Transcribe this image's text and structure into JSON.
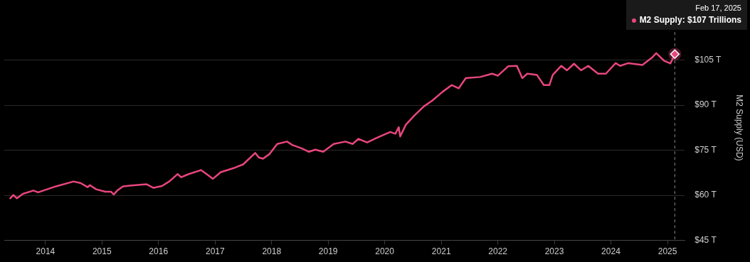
{
  "chart_data": {
    "type": "line",
    "ylabel": "M2 Supply (USD)",
    "x": [
      "2013-05-15",
      "2013-06-08",
      "2013-07-01",
      "2013-08-08",
      "2013-10-15",
      "2013-11-15",
      "2014-03-10",
      "2014-07-01",
      "2014-08-15",
      "2014-10-01",
      "2014-10-15",
      "2014-11-25",
      "2015-01-23",
      "2015-03-01",
      "2015-03-18",
      "2015-04-10",
      "2015-05-17",
      "2015-07-10",
      "2015-10-15",
      "2015-11-30",
      "2016-01-23",
      "2016-03-10",
      "2016-05-04",
      "2016-05-27",
      "2016-07-10",
      "2016-10-01",
      "2016-11-06",
      "2016-12-17",
      "2017-02-06",
      "2017-05-08",
      "2017-07-01",
      "2017-09-17",
      "2017-10-10",
      "2017-11-06",
      "2017-12-17",
      "2018-02-06",
      "2018-04-10",
      "2018-05-17",
      "2018-07-16",
      "2018-08-30",
      "2018-10-10",
      "2018-11-30",
      "2019-02-06",
      "2019-04-23",
      "2019-06-08",
      "2019-07-16",
      "2019-09-10",
      "2019-11-06",
      "2020-02-06",
      "2020-03-10",
      "2020-04-01",
      "2020-04-10",
      "2020-05-17",
      "2020-07-10",
      "2020-09-10",
      "2020-11-03",
      "2021-01-10",
      "2021-03-10",
      "2021-04-23",
      "2021-06-08",
      "2021-09-10",
      "2021-11-25",
      "2022-01-01",
      "2022-03-10",
      "2022-05-04",
      "2022-06-08",
      "2022-07-10",
      "2022-09-10",
      "2022-10-25",
      "2022-11-30",
      "2022-12-22",
      "2023-02-15",
      "2023-03-23",
      "2023-05-08",
      "2023-06-23",
      "2023-08-08",
      "2023-10-10",
      "2023-11-30",
      "2024-02-01",
      "2024-03-01",
      "2024-04-23",
      "2024-07-23",
      "2024-09-22",
      "2024-10-20",
      "2024-12-10",
      "2025-01-20",
      "2025-02-17"
    ],
    "series": [
      {
        "color": "#e8467c",
        "values": [
          58.8,
          60.1,
          59.0,
          60.5,
          61.6,
          61.0,
          63.0,
          64.6,
          64.1,
          62.7,
          63.4,
          62.0,
          61.2,
          61.2,
          60.3,
          61.6,
          63.0,
          63.3,
          63.7,
          62.5,
          63.1,
          64.6,
          67.1,
          66.0,
          67.0,
          68.4,
          67.1,
          65.5,
          67.7,
          69.2,
          70.3,
          74.1,
          72.6,
          72.2,
          73.7,
          77.1,
          77.9,
          76.7,
          75.6,
          74.5,
          75.2,
          74.5,
          77.1,
          77.9,
          77.1,
          78.8,
          77.6,
          79.0,
          81.1,
          80.5,
          82.7,
          79.6,
          83.5,
          86.5,
          89.6,
          91.5,
          94.5,
          96.7,
          95.6,
          99.0,
          99.4,
          100.5,
          99.8,
          103.0,
          103.1,
          99.0,
          100.5,
          100.1,
          96.7,
          96.7,
          100.1,
          103.1,
          101.6,
          103.8,
          101.6,
          103.1,
          100.5,
          100.5,
          104.0,
          103.1,
          104.0,
          103.4,
          105.8,
          107.3,
          104.8,
          103.9,
          107
        ]
      }
    ],
    "xlim": [
      "2013-04-10",
      "2025-04-22"
    ],
    "xticks": [
      "2014",
      "2015",
      "2016",
      "2017",
      "2018",
      "2019",
      "2020",
      "2021",
      "2022",
      "2023",
      "2024",
      "2025"
    ],
    "ylim": [
      45,
      120
    ],
    "yticks": [
      {
        "value": 45,
        "label": "$45 T"
      },
      {
        "value": 60,
        "label": "$60 T"
      },
      {
        "value": 75,
        "label": "$75 T"
      },
      {
        "value": 90,
        "label": "$90 T"
      },
      {
        "value": 105,
        "label": "$105 T"
      }
    ],
    "grid": "y",
    "ref_lines": [
      {
        "axis": "x",
        "value": "2025-02-17",
        "line_style": "dashed",
        "color": "#8a8a8a"
      }
    ],
    "annotations": [
      "Feb 17, 2025",
      "M2 Supply: $107 Trillions"
    ]
  }
}
